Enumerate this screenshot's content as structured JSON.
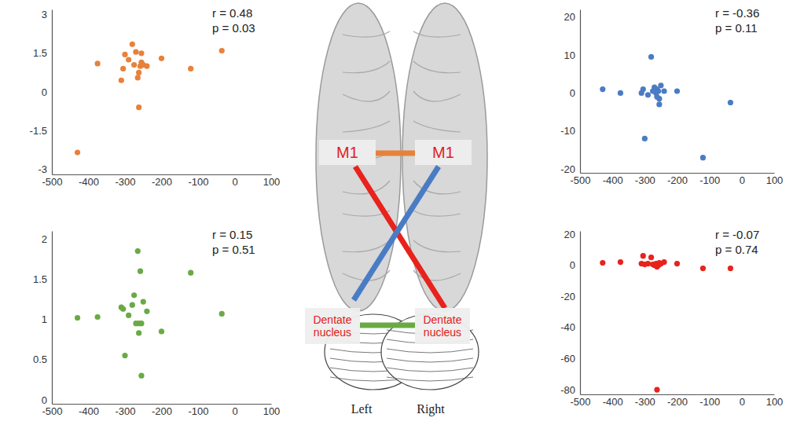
{
  "chart_data": [
    {
      "type": "scatter",
      "annotations": [
        "r = 0.48",
        "p = 0.03"
      ],
      "color": "#e8813a",
      "x": [
        -430,
        -375,
        -310,
        -305,
        -300,
        -290,
        -280,
        -275,
        -270,
        -265,
        -262,
        -262,
        -258,
        -255,
        -255,
        -250,
        -240,
        -200,
        -120,
        -35
      ],
      "values": [
        -2.35,
        1.1,
        0.45,
        0.9,
        1.45,
        1.25,
        1.85,
        1.05,
        1.55,
        0.55,
        0.75,
        -0.6,
        1.0,
        1.15,
        1.5,
        1.05,
        1.0,
        1.3,
        0.9,
        1.6
      ],
      "xlim": [
        -500,
        100
      ],
      "xticks": [
        -500,
        -400,
        -300,
        -200,
        -100,
        0,
        100
      ],
      "ylim": [
        -3.2,
        3.2
      ],
      "yticks": [
        -3,
        -1.5,
        0,
        1.5,
        3
      ]
    },
    {
      "type": "scatter",
      "annotations": [
        "r = -0.36",
        "p = 0.11"
      ],
      "color": "#4a7cc4",
      "x": [
        -430,
        -375,
        -310,
        -305,
        -300,
        -290,
        -280,
        -275,
        -270,
        -265,
        -262,
        -262,
        -258,
        -255,
        -255,
        -250,
        -240,
        -200,
        -120,
        -35
      ],
      "values": [
        1,
        0,
        0,
        1,
        -12,
        -0.5,
        9.5,
        0.5,
        1.5,
        0,
        -1,
        1,
        0.5,
        -3,
        -1.5,
        2,
        0.5,
        0.5,
        -17,
        -2.5
      ],
      "xlim": [
        -500,
        100
      ],
      "xticks": [
        -500,
        -400,
        -300,
        -200,
        -100,
        0,
        100
      ],
      "ylim": [
        -21,
        22
      ],
      "yticks": [
        -20,
        -10,
        0,
        10,
        20
      ]
    },
    {
      "type": "scatter",
      "annotations": [
        "r = 0.15",
        "p = 0.51"
      ],
      "color": "#6aaa45",
      "x": [
        -430,
        -375,
        -310,
        -305,
        -300,
        -290,
        -280,
        -275,
        -270,
        -265,
        -262,
        -262,
        -258,
        -255,
        -255,
        -250,
        -240,
        -200,
        -120,
        -35
      ],
      "values": [
        1.02,
        1.03,
        1.15,
        1.13,
        0.55,
        1.05,
        1.18,
        1.3,
        0.95,
        1.85,
        0.83,
        0.95,
        1.6,
        0.3,
        0.95,
        1.22,
        1.1,
        0.85,
        1.58,
        1.07
      ],
      "xlim": [
        -500,
        100
      ],
      "xticks": [
        -500,
        -400,
        -300,
        -200,
        -100,
        0,
        100
      ],
      "ylim": [
        -0.05,
        2.1
      ],
      "yticks": [
        0,
        0.5,
        1,
        1.5,
        2
      ]
    },
    {
      "type": "scatter",
      "annotations": [
        "r = -0.07",
        "p = 0.74"
      ],
      "color": "#e8221c",
      "x": [
        -430,
        -375,
        -310,
        -305,
        -300,
        -290,
        -280,
        -275,
        -270,
        -265,
        -262,
        -262,
        -258,
        -255,
        -255,
        -250,
        -240,
        -200,
        -120,
        -35
      ],
      "values": [
        1.5,
        2,
        1,
        6,
        0.5,
        1,
        5,
        0.5,
        0,
        1,
        -1,
        -80,
        0,
        0.5,
        1.5,
        1,
        2,
        1,
        -2,
        -2
      ],
      "xlim": [
        -500,
        100
      ],
      "xticks": [
        -500,
        -400,
        -300,
        -200,
        -100,
        0,
        100
      ],
      "ylim": [
        -83,
        22
      ],
      "yticks": [
        -80,
        -60,
        -40,
        -20,
        0,
        20
      ]
    }
  ],
  "diagram": {
    "regions": [
      "M1",
      "M1",
      "Dentate nucleus",
      "Dentate nucleus"
    ],
    "sides": [
      "Left",
      "Right"
    ]
  }
}
